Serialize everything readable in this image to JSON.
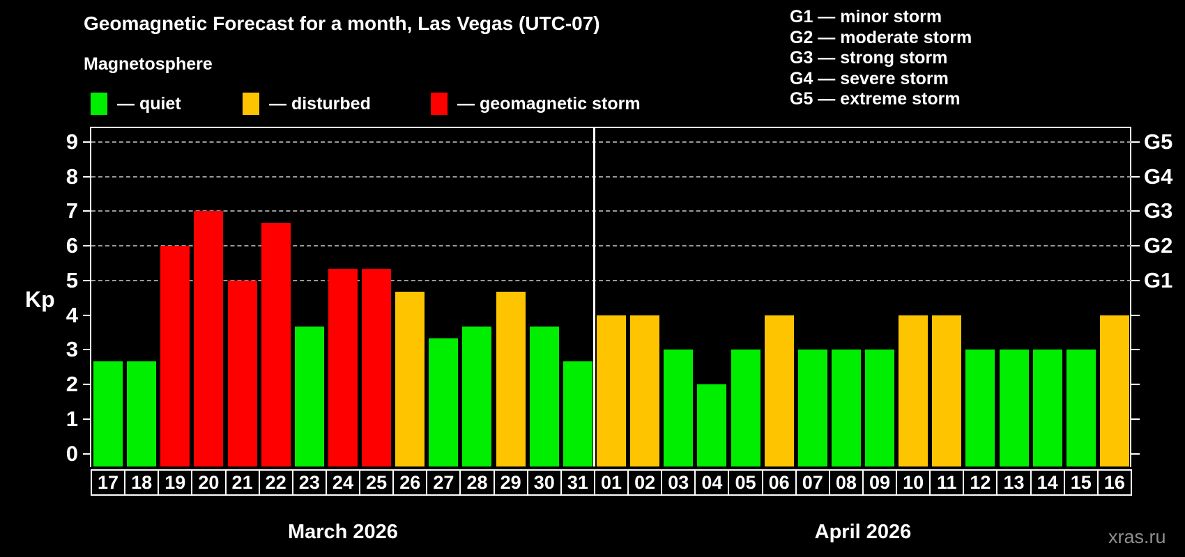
{
  "title": "Geomagnetic Forecast for a month, Las Vegas (UTC-07)",
  "subtitle": "Magnetosphere",
  "legend": {
    "items": [
      {
        "key": "quiet",
        "label": "— quiet",
        "color": "#00ee00"
      },
      {
        "key": "disturbed",
        "label": "— disturbed",
        "color": "#ffc400"
      },
      {
        "key": "storm",
        "label": "— geomagnetic storm",
        "color": "#ff0000"
      }
    ]
  },
  "g_legend": [
    {
      "label": "G1 — minor storm"
    },
    {
      "label": "G2 — moderate storm"
    },
    {
      "label": "G3 — strong storm"
    },
    {
      "label": "G4 — severe storm"
    },
    {
      "label": "G5 — extreme storm"
    }
  ],
  "watermark": "xras.ru",
  "chart_data": {
    "type": "bar",
    "ylabel": "Kp",
    "ylim": [
      -0.37,
      9.4
    ],
    "y_ticks": [
      0,
      1,
      2,
      3,
      4,
      5,
      6,
      7,
      8,
      9
    ],
    "gridlines_at": [
      5,
      6,
      7,
      8,
      9
    ],
    "grid_style": "dashed",
    "right_axis_labels": [
      {
        "value": 5,
        "label": "G1"
      },
      {
        "value": 6,
        "label": "G2"
      },
      {
        "value": 7,
        "label": "G3"
      },
      {
        "value": 8,
        "label": "G4"
      },
      {
        "value": 9,
        "label": "G5"
      }
    ],
    "status_colors": {
      "quiet": "#00ee00",
      "disturbed": "#ffc400",
      "storm": "#ff0000"
    },
    "groups": [
      {
        "month": "March 2026",
        "bars": [
          {
            "day": "17",
            "kp": 2.67,
            "status": "quiet"
          },
          {
            "day": "18",
            "kp": 2.67,
            "status": "quiet"
          },
          {
            "day": "19",
            "kp": 6.0,
            "status": "storm"
          },
          {
            "day": "20",
            "kp": 7.0,
            "status": "storm"
          },
          {
            "day": "21",
            "kp": 5.0,
            "status": "storm"
          },
          {
            "day": "22",
            "kp": 6.67,
            "status": "storm"
          },
          {
            "day": "23",
            "kp": 3.67,
            "status": "quiet"
          },
          {
            "day": "24",
            "kp": 5.33,
            "status": "storm"
          },
          {
            "day": "25",
            "kp": 5.33,
            "status": "storm"
          },
          {
            "day": "26",
            "kp": 4.67,
            "status": "disturbed"
          },
          {
            "day": "27",
            "kp": 3.33,
            "status": "quiet"
          },
          {
            "day": "28",
            "kp": 3.67,
            "status": "quiet"
          },
          {
            "day": "29",
            "kp": 4.67,
            "status": "disturbed"
          },
          {
            "day": "30",
            "kp": 3.67,
            "status": "quiet"
          },
          {
            "day": "31",
            "kp": 2.67,
            "status": "quiet"
          }
        ]
      },
      {
        "month": "April 2026",
        "bars": [
          {
            "day": "01",
            "kp": 4.0,
            "status": "disturbed"
          },
          {
            "day": "02",
            "kp": 4.0,
            "status": "disturbed"
          },
          {
            "day": "03",
            "kp": 3.0,
            "status": "quiet"
          },
          {
            "day": "04",
            "kp": 2.0,
            "status": "quiet"
          },
          {
            "day": "05",
            "kp": 3.0,
            "status": "quiet"
          },
          {
            "day": "06",
            "kp": 4.0,
            "status": "disturbed"
          },
          {
            "day": "07",
            "kp": 3.0,
            "status": "quiet"
          },
          {
            "day": "08",
            "kp": 3.0,
            "status": "quiet"
          },
          {
            "day": "09",
            "kp": 3.0,
            "status": "quiet"
          },
          {
            "day": "10",
            "kp": 4.0,
            "status": "disturbed"
          },
          {
            "day": "11",
            "kp": 4.0,
            "status": "disturbed"
          },
          {
            "day": "12",
            "kp": 3.0,
            "status": "quiet"
          },
          {
            "day": "13",
            "kp": 3.0,
            "status": "quiet"
          },
          {
            "day": "14",
            "kp": 3.0,
            "status": "quiet"
          },
          {
            "day": "15",
            "kp": 3.0,
            "status": "quiet"
          },
          {
            "day": "16",
            "kp": 4.0,
            "status": "disturbed"
          }
        ]
      }
    ]
  }
}
